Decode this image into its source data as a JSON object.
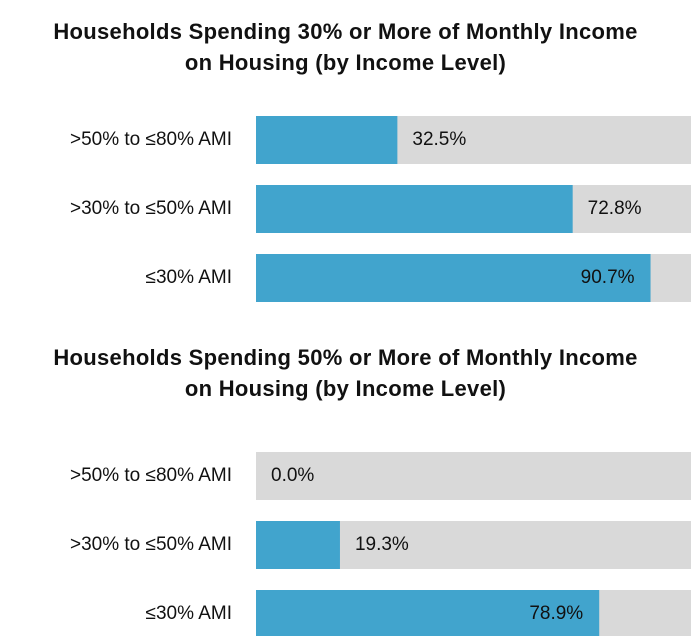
{
  "chart_data": [
    {
      "type": "hbar",
      "title": "Households Spending 30% or More of Monthly Income\non Housing (by Income Level)",
      "categories": [
        ">50% to ≤80% AMI",
        ">30% to ≤50% AMI",
        "≤30% AMI"
      ],
      "values": [
        32.5,
        72.8,
        90.7
      ],
      "value_labels": [
        "32.5%",
        "72.8%",
        "90.7%"
      ],
      "color": "#41a4cd",
      "track_color": "#d9d9d9",
      "xlim": [
        0,
        100
      ]
    },
    {
      "type": "hbar",
      "title": "Households Spending 50% or More of Monthly Income\non Housing (by Income Level)",
      "categories": [
        ">50% to ≤80% AMI",
        ">30% to ≤50% AMI",
        "≤30% AMI"
      ],
      "values": [
        0.0,
        19.3,
        78.9
      ],
      "value_labels": [
        "0.0%",
        "19.3%",
        "78.9%"
      ],
      "color": "#41a4cd",
      "track_color": "#d9d9d9",
      "xlim": [
        0,
        100
      ]
    }
  ]
}
